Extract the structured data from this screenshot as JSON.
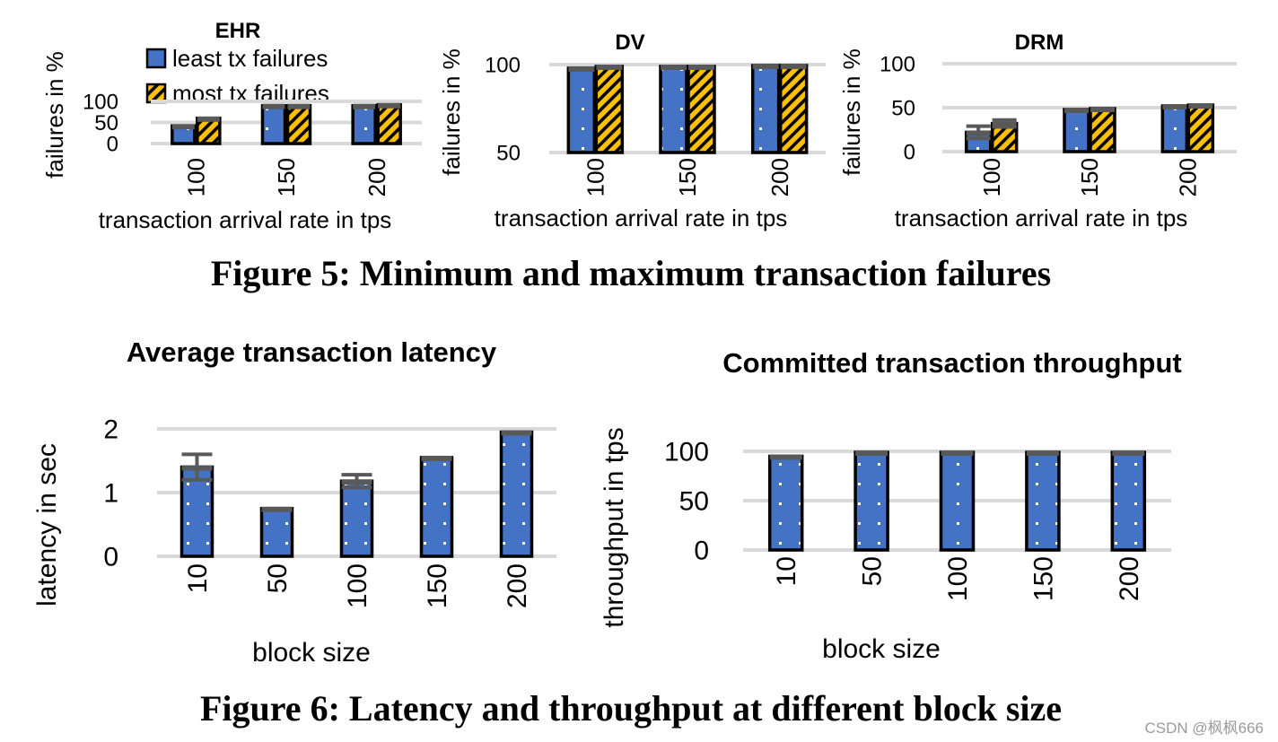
{
  "figures": {
    "fig5_caption": "Figure 5: Minimum and maximum transaction failures",
    "fig6_caption": "Figure 6: Latency and throughput at different block size"
  },
  "legend": {
    "least": "least tx failures",
    "most": "most tx failures"
  },
  "colors": {
    "bar_blue": "#4472C4",
    "bar_gold": "#FFC000",
    "bar_edge": "#000000",
    "cap": "#595959",
    "grid": "#D9D9D9",
    "text": "#000000"
  },
  "watermark": "CSDN @枫枫666",
  "chart_data": [
    {
      "id": "ehr",
      "type": "bar",
      "title": "EHR",
      "xlabel": "transaction arrival rate in tps",
      "ylabel": "failures in %",
      "categories": [
        "100",
        "150",
        "200"
      ],
      "series": [
        {
          "name": "least tx failures",
          "values": [
            42,
            90,
            90
          ]
        },
        {
          "name": "most tx failures",
          "values": [
            60,
            90,
            92
          ]
        }
      ],
      "yticks": [
        "0",
        "50",
        "100"
      ],
      "ylim": [
        0,
        100
      ],
      "grid": true,
      "legend": "top-left"
    },
    {
      "id": "dv",
      "type": "bar",
      "title": "DV",
      "xlabel": "transaction arrival rate in tps",
      "ylabel": "failures in %",
      "categories": [
        "100",
        "150",
        "200"
      ],
      "series": [
        {
          "name": "least tx failures",
          "values": [
            98,
            99,
            99.5
          ]
        },
        {
          "name": "most tx failures",
          "values": [
            99,
            99,
            99.5
          ]
        }
      ],
      "yticks": [
        "50",
        "100"
      ],
      "ylim": [
        50,
        100
      ],
      "grid": true
    },
    {
      "id": "drm",
      "type": "bar",
      "title": "DRM",
      "xlabel": "transaction arrival rate in tps",
      "ylabel": "failures in %",
      "categories": [
        "100",
        "150",
        "200"
      ],
      "series": [
        {
          "name": "least tx failures",
          "values": [
            22,
            48,
            52
          ],
          "err": [
            7,
            0,
            0
          ]
        },
        {
          "name": "most tx failures",
          "values": [
            32,
            49,
            53
          ],
          "err": [
            4,
            0,
            0
          ]
        }
      ],
      "yticks": [
        "0",
        "50",
        "100"
      ],
      "ylim": [
        0,
        100
      ],
      "grid": true
    },
    {
      "id": "latency",
      "type": "bar",
      "title": "Average transaction latency",
      "xlabel": "block size",
      "ylabel": "latency in sec",
      "categories": [
        "10",
        "50",
        "100",
        "150",
        "200"
      ],
      "series": [
        {
          "values": [
            1.4,
            0.75,
            1.18,
            1.55,
            1.95
          ],
          "err": [
            0.2,
            0,
            0.1,
            0,
            0
          ]
        }
      ],
      "yticks": [
        "0",
        "1",
        "2"
      ],
      "ylim": [
        0,
        2
      ],
      "grid": true
    },
    {
      "id": "throughput",
      "type": "bar",
      "title": "Committed transaction throughput",
      "xlabel": "block size",
      "ylabel": "throughput in tps",
      "categories": [
        "10",
        "50",
        "100",
        "150",
        "200"
      ],
      "series": [
        {
          "values": [
            95,
            99,
            99,
            99,
            99
          ]
        }
      ],
      "yticks": [
        "0",
        "50",
        "100"
      ],
      "ylim": [
        0,
        100
      ],
      "grid": true
    }
  ]
}
